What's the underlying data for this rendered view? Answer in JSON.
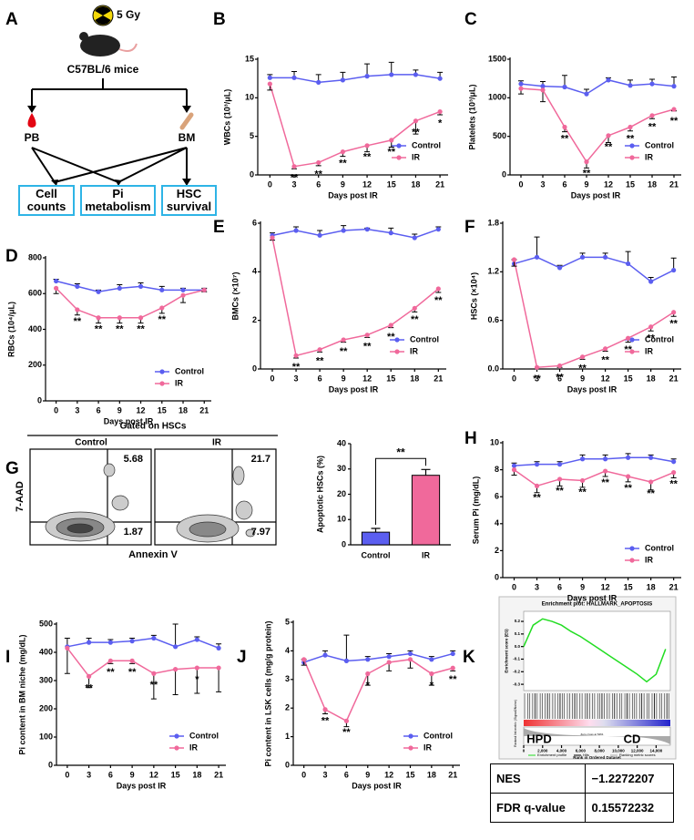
{
  "diagram": {
    "panel": "A",
    "dose": "5 Gy",
    "mice": "C57BL/6 mice",
    "sources": [
      "PB",
      "BM"
    ],
    "outcomes": [
      "Cell counts",
      "Pi metabolism",
      "HSC survival"
    ]
  },
  "flow": {
    "panel": "G",
    "title": "Gated on HSCs",
    "y_label": "7-AAD",
    "x_label": "Annexin V",
    "plots": [
      {
        "name": "Control",
        "upper": 5.68,
        "lower": 1.87
      },
      {
        "name": "IR",
        "upper": 21.7,
        "lower": 7.97
      }
    ]
  },
  "gsea": {
    "panel": "K",
    "high": "HPD",
    "low": "CD",
    "metric_label": "Ranked list metric (Signal2Noise)",
    "zero_cross": "Zero cross at 5461",
    "legend_extra": [
      "Hits",
      "Ranking metric scores"
    ],
    "table": [
      [
        "NES",
        "−1.2272207"
      ],
      [
        "FDR q-value",
        "0.15572232"
      ]
    ]
  },
  "chart_data": [
    {
      "panel": "B",
      "type": "line",
      "y_label": "WBCs (10³/μL)",
      "x_label": "Days post IR",
      "x": [
        0,
        3,
        6,
        9,
        12,
        15,
        18,
        21
      ],
      "xlim": [
        -1.5,
        22
      ],
      "xticks": [
        0,
        3,
        6,
        9,
        12,
        15,
        18,
        21
      ],
      "ylim": [
        0,
        15
      ],
      "yticks": [
        0,
        5,
        10,
        15
      ],
      "legend": "lower right",
      "markers": true,
      "series": [
        {
          "name": "Control",
          "color": "#5b5ef0",
          "values": [
            12.6,
            12.6,
            12,
            12.3,
            12.8,
            13,
            13,
            12.5
          ],
          "errors": [
            0.4,
            0.8,
            1.0,
            1.0,
            1.6,
            1.6,
            0.6,
            0.8
          ]
        },
        {
          "name": "IR",
          "color": "#f0699b",
          "values": [
            11.8,
            1.1,
            1.6,
            3,
            3.8,
            4.5,
            7,
            8.2
          ],
          "errors": [
            0.8,
            0.3,
            0.4,
            0.6,
            0.8,
            0.9,
            1.7,
            0.4
          ],
          "significance": [
            null,
            "**",
            "**",
            "**",
            "**",
            "**",
            "**",
            "*"
          ]
        }
      ]
    },
    {
      "panel": "C",
      "type": "line",
      "y_label": "Platelets (10³/μL)",
      "x_label": "Days post IR",
      "x": [
        0,
        3,
        6,
        9,
        12,
        15,
        18,
        21
      ],
      "xlim": [
        -1.5,
        22
      ],
      "xticks": [
        0,
        3,
        6,
        9,
        12,
        15,
        18,
        21
      ],
      "ylim": [
        0,
        1500
      ],
      "yticks": [
        0,
        500,
        1000,
        1500
      ],
      "legend": "lower right",
      "markers": true,
      "series": [
        {
          "name": "Control",
          "color": "#5b5ef0",
          "values": [
            1180,
            1150,
            1140,
            1050,
            1230,
            1160,
            1180,
            1150
          ],
          "errors": [
            40,
            60,
            150,
            60,
            30,
            70,
            60,
            120
          ]
        },
        {
          "name": "IR",
          "color": "#f0699b",
          "values": [
            1120,
            1100,
            620,
            170,
            510,
            620,
            770,
            850
          ],
          "errors": [
            70,
            150,
            60,
            80,
            90,
            50,
            40,
            20
          ],
          "significance": [
            null,
            null,
            "**",
            "**",
            "**",
            "**",
            "**",
            "**"
          ]
        }
      ]
    },
    {
      "panel": "D",
      "type": "line",
      "y_label": "RBCs (10⁴/μL)",
      "x_label": "Days post IR",
      "x": [
        0,
        3,
        6,
        9,
        12,
        15,
        18,
        21
      ],
      "xlim": [
        -1.5,
        22
      ],
      "xticks": [
        0,
        3,
        6,
        9,
        12,
        15,
        18,
        21
      ],
      "ylim": [
        0,
        800
      ],
      "yticks": [
        0,
        200,
        400,
        600,
        800
      ],
      "legend": "lower right",
      "markers": true,
      "series": [
        {
          "name": "Control",
          "color": "#5b5ef0",
          "values": [
            670,
            640,
            610,
            630,
            640,
            620,
            620,
            620
          ],
          "errors": [
            10,
            15,
            10,
            20,
            20,
            20,
            10,
            10
          ]
        },
        {
          "name": "IR",
          "color": "#f0699b",
          "values": [
            630,
            510,
            465,
            465,
            465,
            520,
            590,
            620
          ],
          "errors": [
            30,
            30,
            30,
            30,
            30,
            30,
            40,
            10
          ],
          "significance": [
            null,
            "**",
            "**",
            "**",
            "**",
            "**",
            null,
            null
          ]
        }
      ]
    },
    {
      "panel": "E",
      "type": "line",
      "y_label": "BMCs (×10⁷)",
      "x_label": "Days post IR",
      "x": [
        0,
        3,
        6,
        9,
        12,
        15,
        18,
        21
      ],
      "xlim": [
        -1.5,
        22
      ],
      "xticks": [
        0,
        3,
        6,
        9,
        12,
        15,
        18,
        21
      ],
      "ylim": [
        0,
        6
      ],
      "yticks": [
        0,
        2,
        4,
        6
      ],
      "legend": "lower right",
      "markers": true,
      "series": [
        {
          "name": "Control",
          "color": "#5b5ef0",
          "values": [
            5.5,
            5.7,
            5.5,
            5.7,
            5.75,
            5.6,
            5.4,
            5.75
          ],
          "errors": [
            0.1,
            0.15,
            0.2,
            0.2,
            0.05,
            0.2,
            0.15,
            0.1
          ]
        },
        {
          "name": "IR",
          "color": "#f0699b",
          "values": [
            5.4,
            0.55,
            0.8,
            1.2,
            1.4,
            1.8,
            2.5,
            3.3
          ],
          "errors": [
            0.1,
            0.1,
            0.1,
            0.1,
            0.1,
            0.1,
            0.15,
            0.15
          ],
          "significance": [
            null,
            "**",
            "**",
            "**",
            "**",
            "**",
            "**",
            "**"
          ]
        }
      ]
    },
    {
      "panel": "F",
      "type": "line",
      "y_label": "HSCs (×10⁴)",
      "x_label": "Days post IR",
      "x": [
        0,
        3,
        6,
        9,
        12,
        15,
        18,
        21
      ],
      "xlim": [
        -1.5,
        22
      ],
      "xticks": [
        0,
        3,
        6,
        9,
        12,
        15,
        18,
        21
      ],
      "ylim": [
        0,
        1.8
      ],
      "yticks": [
        {
          "value": 0,
          "label": "0.0"
        },
        0.6,
        1.2,
        1.8
      ],
      "legend": "lower right",
      "markers": true,
      "series": [
        {
          "name": "Control",
          "color": "#5b5ef0",
          "values": [
            1.3,
            1.38,
            1.25,
            1.38,
            1.38,
            1.3,
            1.08,
            1.22
          ],
          "errors": [
            0.05,
            0.25,
            0.03,
            0.05,
            0.05,
            0.15,
            0.05,
            0.15
          ]
        },
        {
          "name": "IR",
          "color": "#f0699b",
          "values": [
            1.35,
            0.02,
            0.04,
            0.15,
            0.25,
            0.38,
            0.52,
            0.7
          ],
          "errors": [
            0.08,
            0.02,
            0.02,
            0.03,
            0.03,
            0.05,
            0.05,
            0.05
          ],
          "significance": [
            null,
            "**",
            "**",
            "**",
            "**",
            "**",
            "**",
            "**"
          ]
        }
      ]
    },
    {
      "panel": "H",
      "type": "line",
      "y_label": "Serum Pi (mg/dL)",
      "x_label": "Days post IR",
      "x": [
        0,
        3,
        6,
        9,
        12,
        15,
        18,
        21
      ],
      "xlim": [
        -1.5,
        22
      ],
      "xticks": [
        0,
        3,
        6,
        9,
        12,
        15,
        18,
        21
      ],
      "ylim": [
        0,
        10
      ],
      "yticks": [
        0,
        2,
        4,
        6,
        8,
        10
      ],
      "legend": "lower right",
      "markers": true,
      "series": [
        {
          "name": "Control",
          "color": "#5b5ef0",
          "values": [
            8.3,
            8.4,
            8.4,
            8.8,
            8.8,
            8.9,
            8.9,
            8.6
          ],
          "errors": [
            0.2,
            0.2,
            0.2,
            0.3,
            0.3,
            0.3,
            0.2,
            0.2
          ]
        },
        {
          "name": "IR",
          "color": "#f0699b",
          "values": [
            8.0,
            6.8,
            7.3,
            7.2,
            7.9,
            7.5,
            7.1,
            7.8
          ],
          "errors": [
            0.4,
            0.5,
            0.5,
            0.5,
            0.4,
            0.4,
            0.6,
            0.4
          ],
          "significance": [
            null,
            "**",
            "**",
            "**",
            "**",
            "**",
            "**",
            "**"
          ]
        }
      ]
    },
    {
      "panel": "I",
      "type": "line",
      "y_label": "Pi content in BM niche (mg/dL)",
      "x_label": "Days post IR",
      "x": [
        0,
        3,
        6,
        9,
        12,
        15,
        18,
        21
      ],
      "xlim": [
        -1.5,
        22
      ],
      "xticks": [
        0,
        3,
        6,
        9,
        12,
        15,
        18,
        21
      ],
      "ylim": [
        0,
        500
      ],
      "yticks": [
        0,
        100,
        200,
        300,
        400,
        500
      ],
      "legend": "lower right",
      "markers": true,
      "series": [
        {
          "name": "Control",
          "color": "#5b5ef0",
          "values": [
            420,
            435,
            435,
            440,
            450,
            420,
            445,
            415
          ],
          "errors": [
            30,
            15,
            10,
            10,
            10,
            80,
            10,
            15
          ]
        },
        {
          "name": "IR",
          "color": "#f0699b",
          "values": [
            415,
            315,
            370,
            370,
            325,
            340,
            345,
            345
          ],
          "errors": [
            90,
            40,
            10,
            10,
            90,
            90,
            90,
            85
          ],
          "significance": [
            null,
            "**",
            "**",
            "**",
            "**",
            null,
            "*",
            null
          ]
        }
      ]
    },
    {
      "panel": "J",
      "type": "line",
      "y_label": "Pi content in LSK cells (mg/g protein)",
      "x_label": "Days post IR",
      "x": [
        0,
        3,
        6,
        9,
        12,
        15,
        18,
        21
      ],
      "xlim": [
        -1.5,
        22
      ],
      "xticks": [
        0,
        3,
        6,
        9,
        12,
        15,
        18,
        21
      ],
      "ylim": [
        0,
        5
      ],
      "yticks": [
        0,
        1,
        2,
        3,
        4,
        5
      ],
      "legend": "lower right",
      "markers": true,
      "series": [
        {
          "name": "Control",
          "color": "#5b5ef0",
          "values": [
            3.6,
            3.85,
            3.65,
            3.7,
            3.8,
            3.9,
            3.7,
            3.9
          ],
          "errors": [
            0.1,
            0.15,
            0.9,
            0.1,
            0.1,
            0.1,
            0.1,
            0.1
          ]
        },
        {
          "name": "IR",
          "color": "#f0699b",
          "values": [
            3.7,
            1.95,
            1.55,
            3.2,
            3.6,
            3.7,
            3.2,
            3.4
          ],
          "errors": [
            0.2,
            0.15,
            0.2,
            0.4,
            0.3,
            0.3,
            0.4,
            0.1
          ],
          "significance": [
            null,
            "**",
            "**",
            "*",
            null,
            null,
            "*",
            "**"
          ]
        }
      ]
    },
    {
      "type": "bar",
      "y_label": "Apoptotic HSCs (%)",
      "categories": [
        "Control",
        "IR"
      ],
      "values": [
        5,
        27.5
      ],
      "errors": [
        1.5,
        2.3
      ],
      "colors": [
        "#5b5ef0",
        "#f0699b"
      ],
      "ylim": [
        0,
        40
      ],
      "yticks": [
        0,
        10,
        20,
        30,
        40
      ],
      "significance": "**"
    },
    {
      "type": "line",
      "title": "Enrichment plot: HALLMARK_APOPTOSIS",
      "y_label": "Enrichment score (ES)",
      "x_label": "Rank in Ordered Dataset",
      "x": [
        0,
        1000,
        2000,
        3000,
        4000,
        5000,
        6000,
        7000,
        8000,
        9000,
        10000,
        11000,
        12000,
        13000,
        14000,
        15000
      ],
      "xlim": [
        0,
        15500
      ],
      "xticks": [
        0,
        {
          "value": 2000,
          "label": "2,000"
        },
        {
          "value": 4000,
          "label": "4,000"
        },
        {
          "value": 6000,
          "label": "6,000"
        },
        {
          "value": 8000,
          "label": "8,000"
        },
        {
          "value": 10000,
          "label": "10,000"
        },
        {
          "value": 12000,
          "label": "12,000"
        },
        {
          "value": 14000,
          "label": "14,000"
        }
      ],
      "ylim": [
        -0.35,
        0.28
      ],
      "yticks": [
        0.2,
        0.1,
        {
          "value": 0,
          "label": "0.0"
        },
        -0.1,
        -0.2,
        -0.3
      ],
      "legend": "bottom",
      "markers": false,
      "series": [
        {
          "name": "Enrichment profile",
          "color": "#22dd22",
          "values": [
            0,
            0.17,
            0.22,
            0.2,
            0.17,
            0.12,
            0.08,
            0.03,
            -0.02,
            -0.07,
            -0.12,
            -0.17,
            -0.22,
            -0.28,
            -0.22,
            -0.02
          ]
        }
      ]
    }
  ]
}
